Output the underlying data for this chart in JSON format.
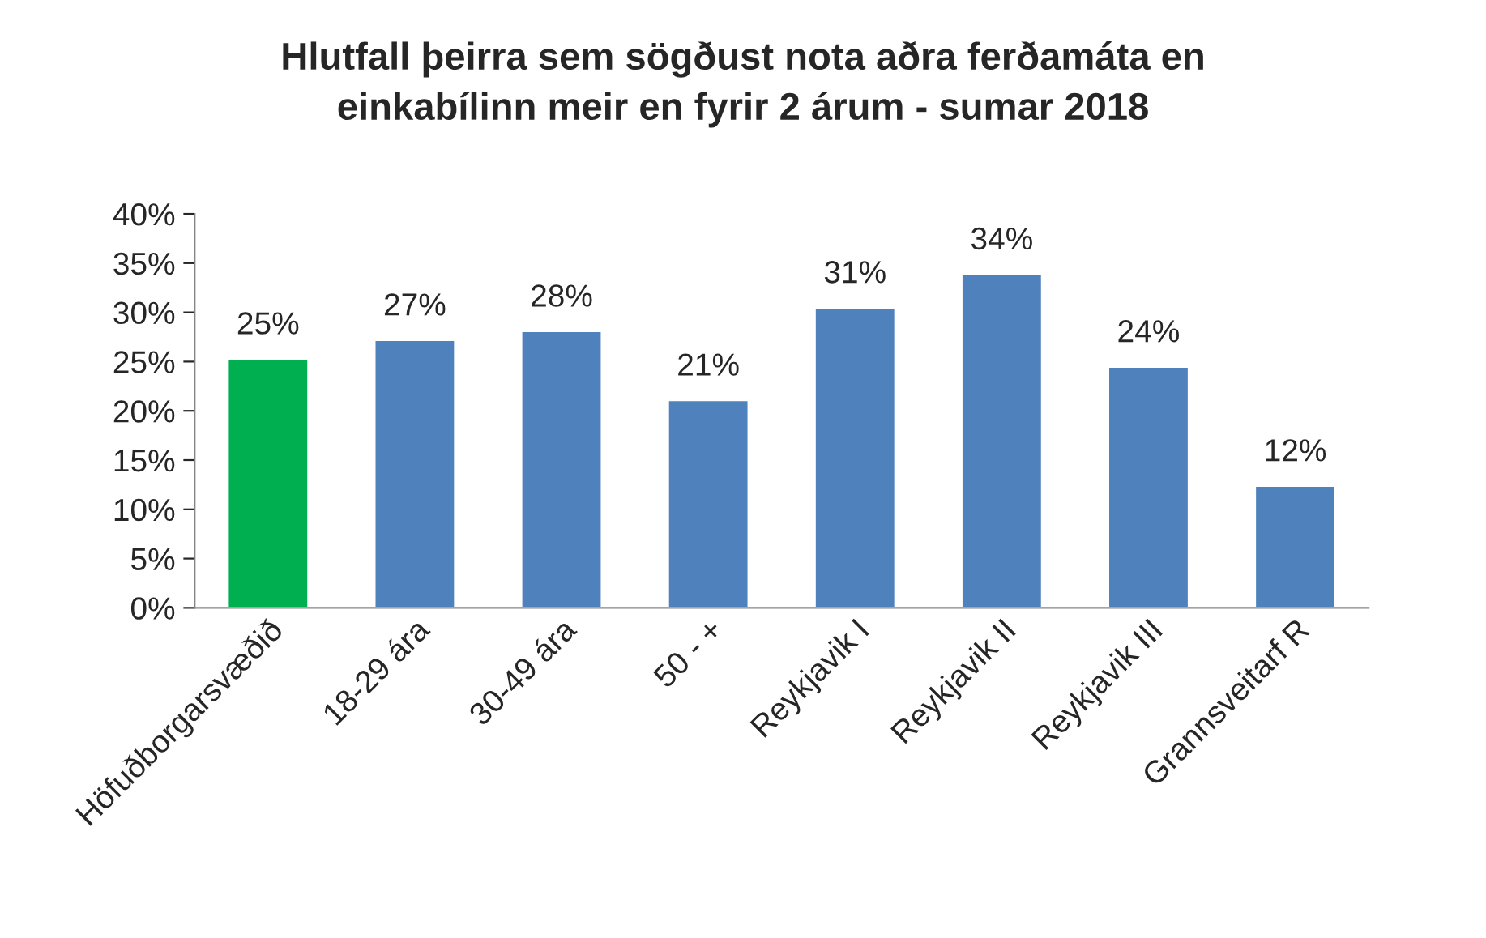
{
  "chart_data": {
    "type": "bar",
    "title": "Hlutfall þeirra sem sögðust nota aðra ferðamáta en\neinkabílinn meir en fyrir 2 árum - sumar 2018",
    "categories": [
      "Höfuðborgarsvæðið",
      "18-29 ára",
      "30-49 ára",
      "50 - +",
      "Reykjavik I",
      "Reykjavik II",
      "Reykjavik III",
      "Grannsveitarf R"
    ],
    "values": [
      25.3,
      27.2,
      28.1,
      21.1,
      30.5,
      33.9,
      24.5,
      12.4
    ],
    "colors": [
      "#00b050",
      "#4f81bd",
      "#4f81bd",
      "#4f81bd",
      "#4f81bd",
      "#4f81bd",
      "#4f81bd",
      "#4f81bd"
    ],
    "value_labels": [
      "25%",
      "27%",
      "28%",
      "21%",
      "31%",
      "34%",
      "24%",
      "12%"
    ],
    "ylim": [
      0,
      40
    ],
    "yticks": [
      {
        "value": 0,
        "label": "0%"
      },
      {
        "value": 5,
        "label": "5%"
      },
      {
        "value": 10,
        "label": "10%"
      },
      {
        "value": 15,
        "label": "15%"
      },
      {
        "value": 20,
        "label": "20%"
      },
      {
        "value": 25,
        "label": "25%"
      },
      {
        "value": 30,
        "label": "30%"
      },
      {
        "value": 35,
        "label": "35%"
      },
      {
        "value": 40,
        "label": "40%"
      }
    ],
    "grid": false
  }
}
